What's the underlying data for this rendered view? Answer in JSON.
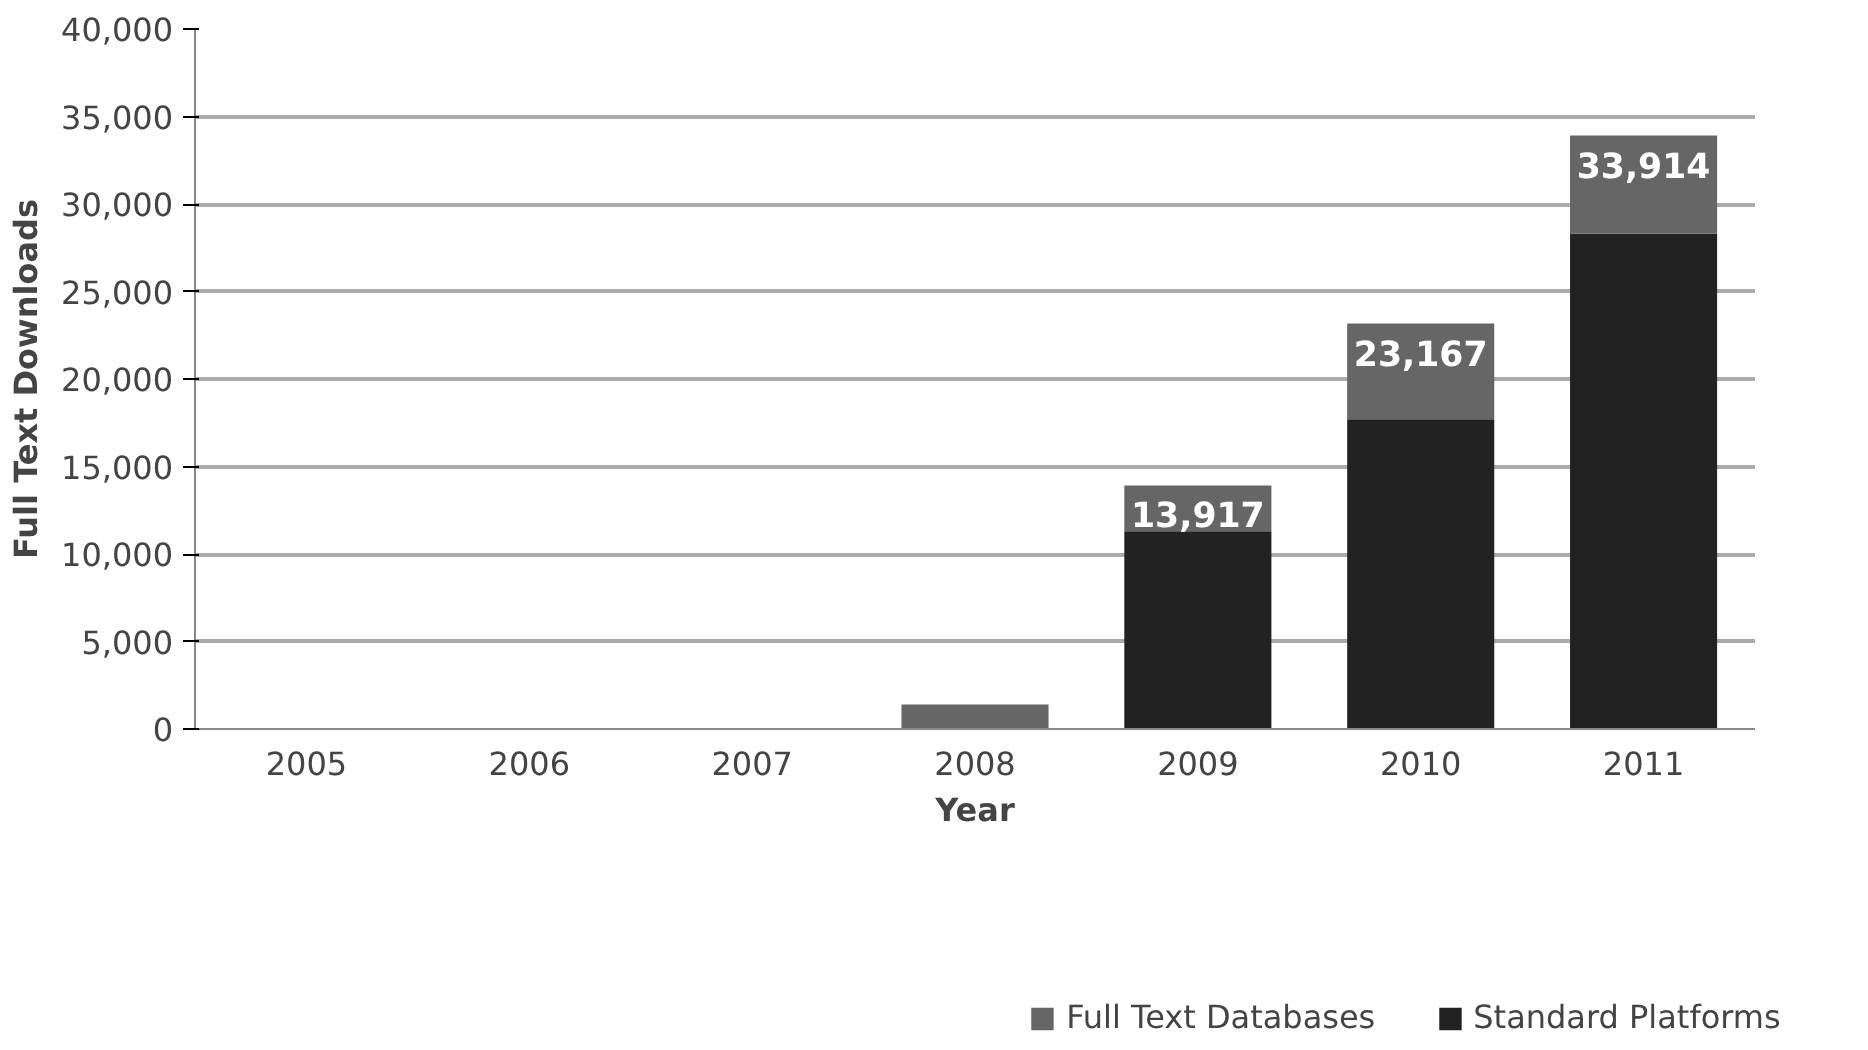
{
  "chart_data": {
    "type": "bar",
    "stacked": true,
    "xlabel": "Year",
    "ylabel": "Full Text Downloads",
    "categories": [
      "2005",
      "2006",
      "2007",
      "2008",
      "2009",
      "2010",
      "2011"
    ],
    "series": [
      {
        "name": "Standard Platforms",
        "color": "#222222",
        "values": [
          0,
          0,
          0,
          0,
          11300,
          17700,
          28300
        ]
      },
      {
        "name": "Full Text Databases",
        "color": "#666666",
        "values": [
          0,
          0,
          0,
          1400,
          2617,
          5467,
          5614
        ]
      }
    ],
    "totals": [
      null,
      null,
      null,
      null,
      "13,917",
      "23,167",
      "33,914"
    ],
    "ylim": [
      0,
      40000
    ],
    "yticks": [
      {
        "value": 0,
        "label": "0"
      },
      {
        "value": 5000,
        "label": "5,000"
      },
      {
        "value": 10000,
        "label": "10,000"
      },
      {
        "value": 15000,
        "label": "15,000"
      },
      {
        "value": 20000,
        "label": "20,000"
      },
      {
        "value": 25000,
        "label": "25,000"
      },
      {
        "value": 30000,
        "label": "30,000"
      },
      {
        "value": 35000,
        "label": "35,000"
      },
      {
        "value": 40000,
        "label": "40,000"
      }
    ],
    "grid": "y",
    "legend": "bottom"
  }
}
